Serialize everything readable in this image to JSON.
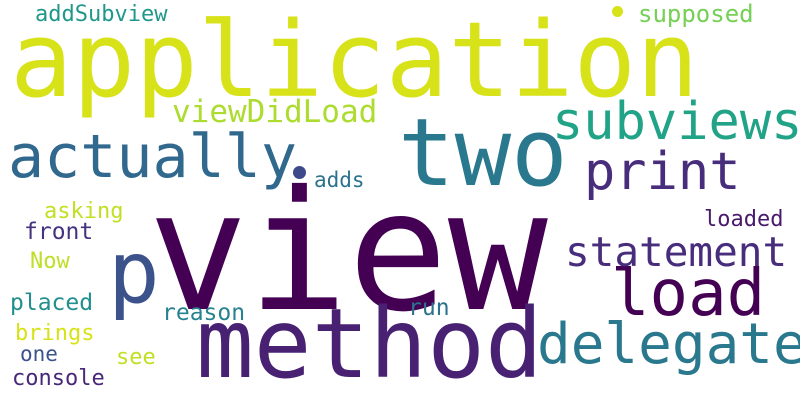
{
  "words": [
    {
      "text": "view",
      "color": "#440154"
    },
    {
      "text": "application",
      "color": "#d8e219"
    },
    {
      "text": "method",
      "color": "#482173"
    },
    {
      "text": "two",
      "color": "#2a788e"
    },
    {
      "text": "actually",
      "color": "#31688e"
    },
    {
      "text": "p",
      "color": "#3b528b"
    },
    {
      "text": "load",
      "color": "#440154"
    },
    {
      "text": "delegate",
      "color": "#2a788e"
    },
    {
      "text": "subviews",
      "color": "#20a386"
    },
    {
      "text": "print",
      "color": "#472d7b"
    },
    {
      "text": "statement",
      "color": "#472d7b"
    },
    {
      "text": "viewDidLoad",
      "color": "#addc30"
    },
    {
      "text": "addSubview",
      "color": "#1f988b"
    },
    {
      "text": "supposed",
      "color": "#75d054"
    },
    {
      "text": "adds",
      "color": "#2c728e"
    },
    {
      "text": "asking",
      "color": "#c2df23"
    },
    {
      "text": "front",
      "color": "#46327e"
    },
    {
      "text": "Now",
      "color": "#bddf26"
    },
    {
      "text": "placed",
      "color": "#218f8d"
    },
    {
      "text": "brings",
      "color": "#d8e219"
    },
    {
      "text": "reason",
      "color": "#26828e"
    },
    {
      "text": "run",
      "color": "#2c728e"
    },
    {
      "text": "loaded",
      "color": "#481a6c"
    },
    {
      "text": "one",
      "color": "#3b528b"
    },
    {
      "text": "see",
      "color": "#c2df23"
    },
    {
      "text": "console",
      "color": "#482878"
    }
  ],
  "dots": [
    {
      "color": "#3e4989"
    },
    {
      "color": "#d8e219"
    }
  ]
}
